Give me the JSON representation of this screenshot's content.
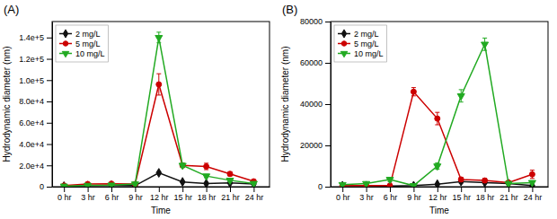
{
  "chart_data": [
    {
      "type": "line",
      "title": "(A)",
      "x_label": "Time",
      "y_label": "Hydrodynamic diameter (nm)",
      "x": [
        0,
        3,
        6,
        9,
        12,
        15,
        18,
        21,
        24
      ],
      "xlim": [
        -1.5,
        26
      ],
      "xticks": [
        {
          "value": 0,
          "label": "0 hr"
        },
        {
          "value": 3,
          "label": "3 hr"
        },
        {
          "value": 6,
          "label": "6 hr"
        },
        {
          "value": 9,
          "label": "9 hr"
        },
        {
          "value": 12,
          "label": "12 hr"
        },
        {
          "value": 15,
          "label": "15 hr"
        },
        {
          "value": 18,
          "label": "18 hr"
        },
        {
          "value": 21,
          "label": "21 hr"
        },
        {
          "value": 24,
          "label": "24 hr"
        }
      ],
      "ylim": [
        0,
        155000
      ],
      "yticks": [
        0,
        {
          "value": 20000,
          "label": "2.0e+4"
        },
        {
          "value": 40000,
          "label": "4.0e+4"
        },
        {
          "value": 60000,
          "label": "6.0e+4"
        },
        {
          "value": 80000,
          "label": "8.0e+4"
        },
        {
          "value": 100000,
          "label": "1.0e+5"
        },
        {
          "value": 120000,
          "label": "1.2e+5"
        },
        {
          "value": 140000,
          "label": "1.4e+5"
        }
      ],
      "legend": "upper-left",
      "series": [
        {
          "name": "2 mg/L",
          "color": "#111111",
          "marker": "diamond",
          "values": [
            500,
            1000,
            1200,
            1000,
            13000,
            4500,
            3000,
            3500,
            2500
          ],
          "errors": [
            200,
            300,
            300,
            200,
            1000,
            500,
            400,
            600,
            400
          ]
        },
        {
          "name": "5 mg/L",
          "color": "#cc0000",
          "marker": "circle",
          "values": [
            1000,
            2500,
            2800,
            2500,
            96000,
            20000,
            19000,
            12000,
            5000
          ],
          "errors": [
            300,
            500,
            500,
            500,
            10000,
            2000,
            3000,
            2000,
            800
          ]
        },
        {
          "name": "10 mg/L",
          "color": "#22aa22",
          "marker": "triangle-down",
          "values": [
            500,
            1200,
            1500,
            2500,
            140000,
            20000,
            10000,
            6000,
            3000
          ],
          "errors": [
            200,
            300,
            400,
            500,
            5000,
            2000,
            1500,
            1000,
            600
          ]
        }
      ]
    },
    {
      "type": "line",
      "title": "(B)",
      "x_label": "Time",
      "y_label": "Hydrodynamic diameter (nm)",
      "x": [
        0,
        3,
        6,
        9,
        12,
        15,
        18,
        21,
        24
      ],
      "xlim": [
        -1.5,
        26
      ],
      "xticks": [
        {
          "value": 0,
          "label": "0 hr"
        },
        {
          "value": 3,
          "label": "3 hr"
        },
        {
          "value": 6,
          "label": "6 hr"
        },
        {
          "value": 9,
          "label": "9 hr"
        },
        {
          "value": 12,
          "label": "12 hr"
        },
        {
          "value": 15,
          "label": "15 hr"
        },
        {
          "value": 18,
          "label": "18 hr"
        },
        {
          "value": 21,
          "label": "21 hr"
        },
        {
          "value": 24,
          "label": "24 hr"
        }
      ],
      "ylim": [
        0,
        80000
      ],
      "yticks": [
        0,
        20000,
        40000,
        60000,
        80000
      ],
      "legend": "upper-left",
      "series": [
        {
          "name": "2 mg/L",
          "color": "#111111",
          "marker": "diamond",
          "values": [
            500,
            500,
            300,
            500,
            1200,
            2500,
            2000,
            1500,
            500
          ],
          "errors": [
            200,
            200,
            100,
            200,
            300,
            800,
            500,
            400,
            200
          ]
        },
        {
          "name": "5 mg/L",
          "color": "#cc0000",
          "marker": "circle",
          "values": [
            500,
            500,
            500,
            46000,
            33000,
            3500,
            3000,
            2000,
            6000
          ],
          "errors": [
            200,
            300,
            300,
            2000,
            3000,
            1000,
            1000,
            800,
            2000
          ]
        },
        {
          "name": "10 mg/L",
          "color": "#22aa22",
          "marker": "triangle-down",
          "values": [
            1000,
            1500,
            3500,
            500,
            10000,
            44000,
            69000,
            1500,
            2000
          ],
          "errors": [
            300,
            400,
            1000,
            200,
            1500,
            3000,
            3000,
            500,
            600
          ]
        }
      ]
    }
  ]
}
